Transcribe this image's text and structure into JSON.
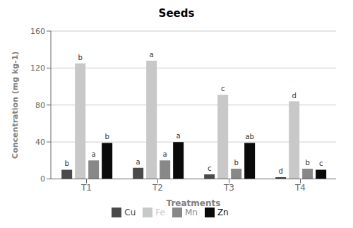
{
  "chart_data": {
    "type": "bar",
    "title": "Seeds",
    "xlabel": "Treatments",
    "ylabel": "Concentration (mg kg-1)",
    "categories": [
      "T1",
      "T2",
      "T3",
      "T4"
    ],
    "series": [
      {
        "name": "Cu",
        "color": "#4a4a4a",
        "values": [
          10,
          12,
          5,
          2
        ],
        "annotations": [
          "b",
          "a",
          "c",
          "d"
        ]
      },
      {
        "name": "Fe",
        "color": "#c8c8c8",
        "values": [
          125,
          128,
          91,
          84
        ],
        "annotations": [
          "b",
          "a",
          "c",
          "d"
        ]
      },
      {
        "name": "Mn",
        "color": "#888888",
        "values": [
          20,
          20,
          11,
          11
        ],
        "annotations": [
          "a",
          "a",
          "b",
          "b"
        ]
      },
      {
        "name": "Zn",
        "color": "#0a0a0a",
        "values": [
          39,
          40,
          39,
          10
        ],
        "annotations": [
          "b",
          "a",
          "ab",
          "c"
        ]
      }
    ],
    "ylim": [
      0,
      160
    ],
    "yticks": [
      0,
      40,
      80,
      120,
      160
    ],
    "grid": true,
    "legend": "bottom"
  }
}
